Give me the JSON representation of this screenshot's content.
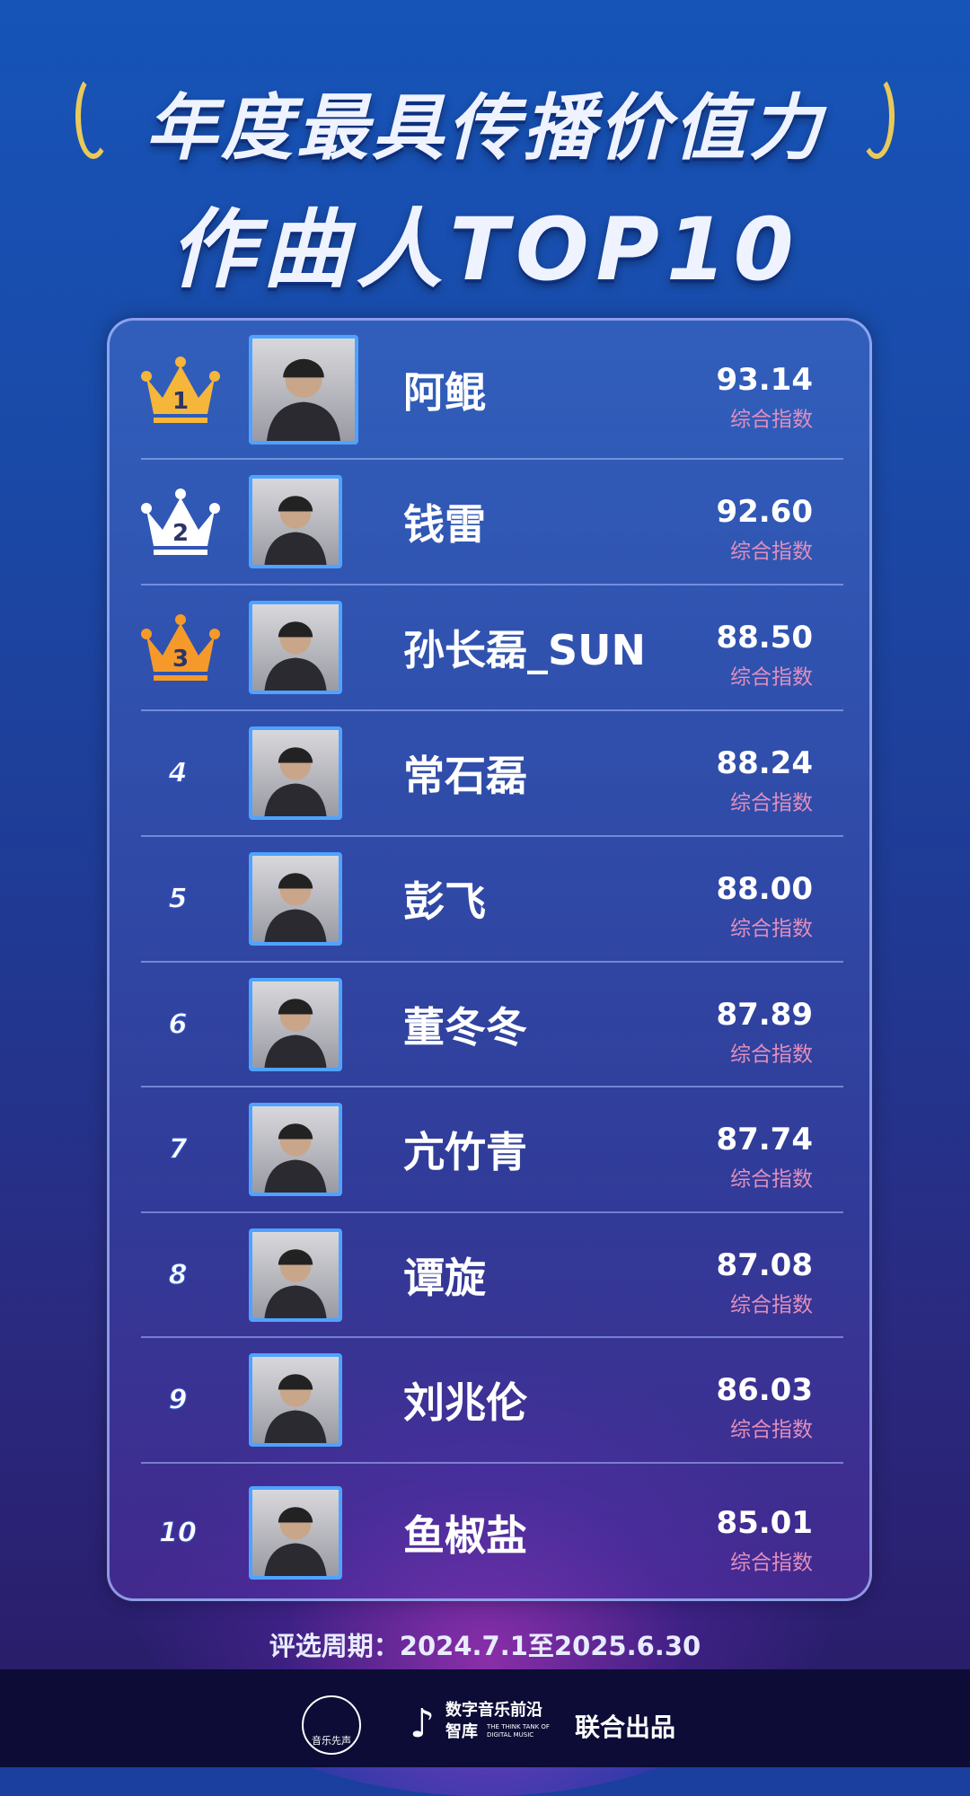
{
  "header": {
    "title_line1": "年度最具传播价值力",
    "title_line2": "作曲人TOP10"
  },
  "colors": {
    "gold": "#f5b63a",
    "silver": "#ffffff",
    "bronze": "#f59a2a",
    "score_label": "#e08fbd",
    "avatar_border": "#4fa3ff"
  },
  "score_label": "综合指数",
  "ranking": [
    {
      "rank": "1",
      "name": "阿鲲",
      "score": "93.14",
      "badge": "gold-crown"
    },
    {
      "rank": "2",
      "name": "钱雷",
      "score": "92.60",
      "badge": "silver-crown"
    },
    {
      "rank": "3",
      "name": "孙长磊_SUN",
      "score": "88.50",
      "badge": "bronze-crown"
    },
    {
      "rank": "4",
      "name": "常石磊",
      "score": "88.24"
    },
    {
      "rank": "5",
      "name": "彭飞",
      "score": "88.00"
    },
    {
      "rank": "6",
      "name": "董冬冬",
      "score": "87.89"
    },
    {
      "rank": "7",
      "name": "亢竹青",
      "score": "87.74"
    },
    {
      "rank": "8",
      "name": "谭旋",
      "score": "87.08"
    },
    {
      "rank": "9",
      "name": "刘兆伦",
      "score": "86.03"
    },
    {
      "rank": "10",
      "name": "鱼椒盐",
      "score": "85.01"
    }
  ],
  "footer": {
    "period": "评选周期：2024.7.1至2025.6.30",
    "logo1_text": "音乐先声",
    "logo2_text": "数字音乐前沿智库",
    "logo2_sub": "THE THINK TANK OF DIGITAL MUSIC",
    "joint": "联合出品"
  }
}
